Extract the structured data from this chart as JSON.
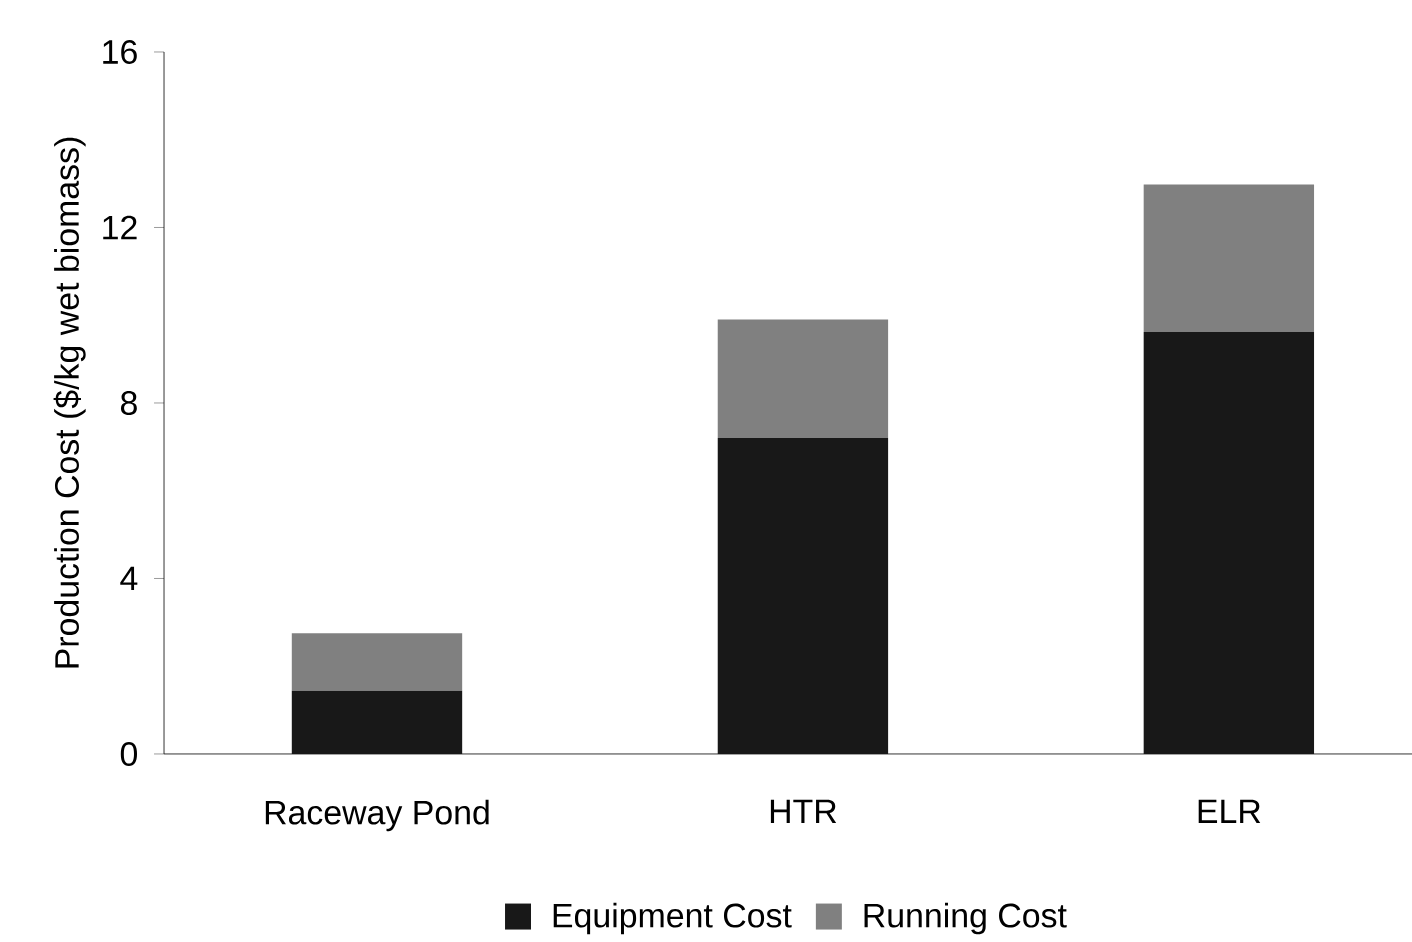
{
  "chart_data": {
    "type": "bar",
    "stacked": true,
    "ylabel": "Production Cost ($/kg wet biomass)",
    "categories": [
      "Raceway Pond",
      "HTR",
      "ELR"
    ],
    "series": [
      {
        "name": "Equipment Cost",
        "color": "#181818",
        "values": [
          1.44,
          7.2,
          9.62
        ]
      },
      {
        "name": "Running Cost",
        "color": "#808080",
        "values": [
          1.31,
          2.7,
          3.36
        ]
      }
    ],
    "ylim": [
      0,
      16
    ],
    "yticks": [
      0,
      4,
      8,
      12,
      16
    ],
    "grid": false,
    "legend": "bottom"
  }
}
